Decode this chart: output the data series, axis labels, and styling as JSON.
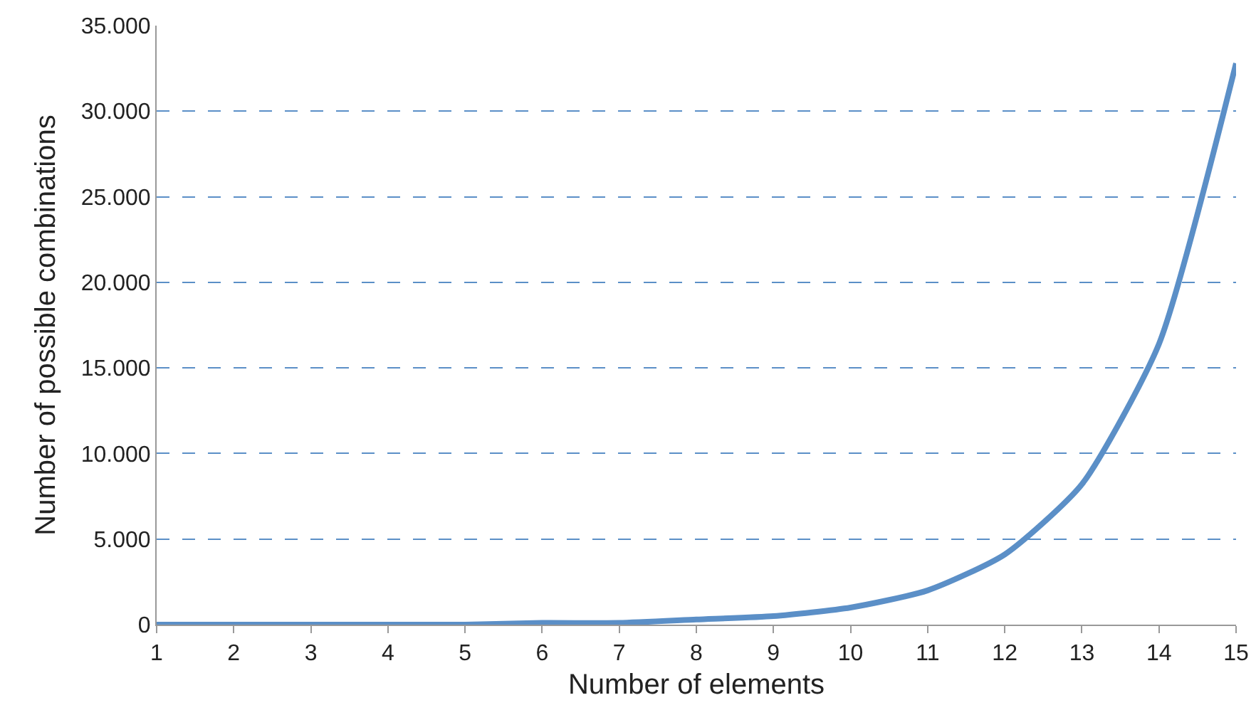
{
  "chart_data": {
    "type": "line",
    "xlabel": "Number of elements",
    "ylabel": "Number of possible combinations",
    "x": [
      1,
      2,
      3,
      4,
      5,
      6,
      7,
      8,
      9,
      10,
      11,
      12,
      13,
      14,
      15
    ],
    "series": [
      {
        "color": "#5b8fc7",
        "values": [
          0,
          0,
          0,
          0,
          0,
          100,
          100,
          300,
          500,
          1000,
          2000,
          4100,
          8200,
          16400,
          32800
        ]
      }
    ],
    "xlim": [
      1,
      15
    ],
    "xticks": [
      1,
      2,
      3,
      4,
      5,
      6,
      7,
      8,
      9,
      10,
      11,
      12,
      13,
      14,
      15
    ],
    "ylim": [
      0,
      35000
    ],
    "yticks": [
      0,
      {
        "value": 5000,
        "label": "5.000"
      },
      {
        "value": 10000,
        "label": "10.000"
      },
      {
        "value": 15000,
        "label": "15.000"
      },
      {
        "value": 20000,
        "label": "20.000"
      },
      {
        "value": 25000,
        "label": "25.000"
      },
      {
        "value": 30000,
        "label": "30.000"
      },
      {
        "value": 35000,
        "label": "35.000"
      }
    ],
    "grid": "y",
    "marker": "none",
    "line_style": "solid"
  }
}
